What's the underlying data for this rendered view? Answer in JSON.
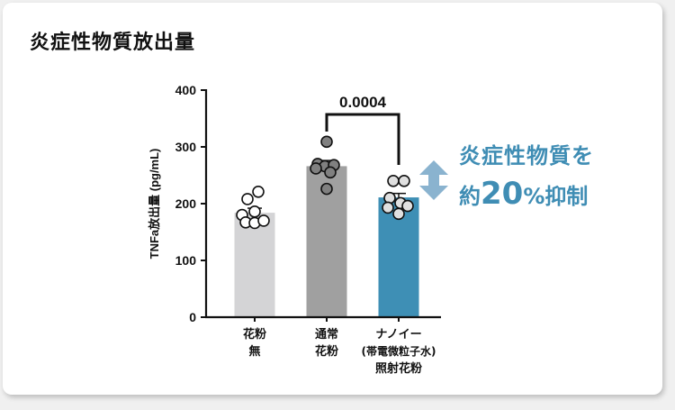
{
  "title": "炎症性物質放出量",
  "callout": {
    "line1": "炎症性物質を",
    "prefix": "約",
    "number": "20",
    "percent": "%",
    "suffix": "抑制",
    "color": "#3f8db4"
  },
  "significance": {
    "label": "0.0004",
    "between": [
      "通常花粉",
      "ナノイー照射花粉"
    ]
  },
  "xlabels": [
    {
      "lines": [
        "花粉",
        "無"
      ]
    },
    {
      "lines": [
        "通常",
        "花粉"
      ]
    },
    {
      "lines": [
        "ナノイー",
        "(帯電微粒子水)",
        "照射花粉"
      ]
    }
  ],
  "chart_data": {
    "type": "bar",
    "title": "炎症性物質放出量",
    "xlabel": "",
    "ylabel": "TNFa放出量 (pg/mL)",
    "ylim": [
      0,
      400
    ],
    "yticks": [
      0,
      100,
      200,
      300,
      400
    ],
    "categories": [
      "花粉無",
      "通常花粉",
      "ナノイー(帯電微粒子水)照射花粉"
    ],
    "values": [
      184,
      266,
      211
    ],
    "sem": [
      8,
      10,
      7
    ],
    "colors": [
      "#d4d4d6",
      "#a0a0a0",
      "#3e8fb5"
    ],
    "points": [
      [
        221,
        208,
        186,
        180,
        167,
        166,
        170
      ],
      [
        309,
        270,
        266,
        268,
        262,
        255,
        226
      ],
      [
        240,
        240,
        210,
        201,
        196,
        193,
        182
      ]
    ],
    "point_fills": [
      "#ffffff",
      "#808080",
      "#e0e0e0"
    ],
    "annotation": "0.0004",
    "grid": false,
    "legend": null
  }
}
